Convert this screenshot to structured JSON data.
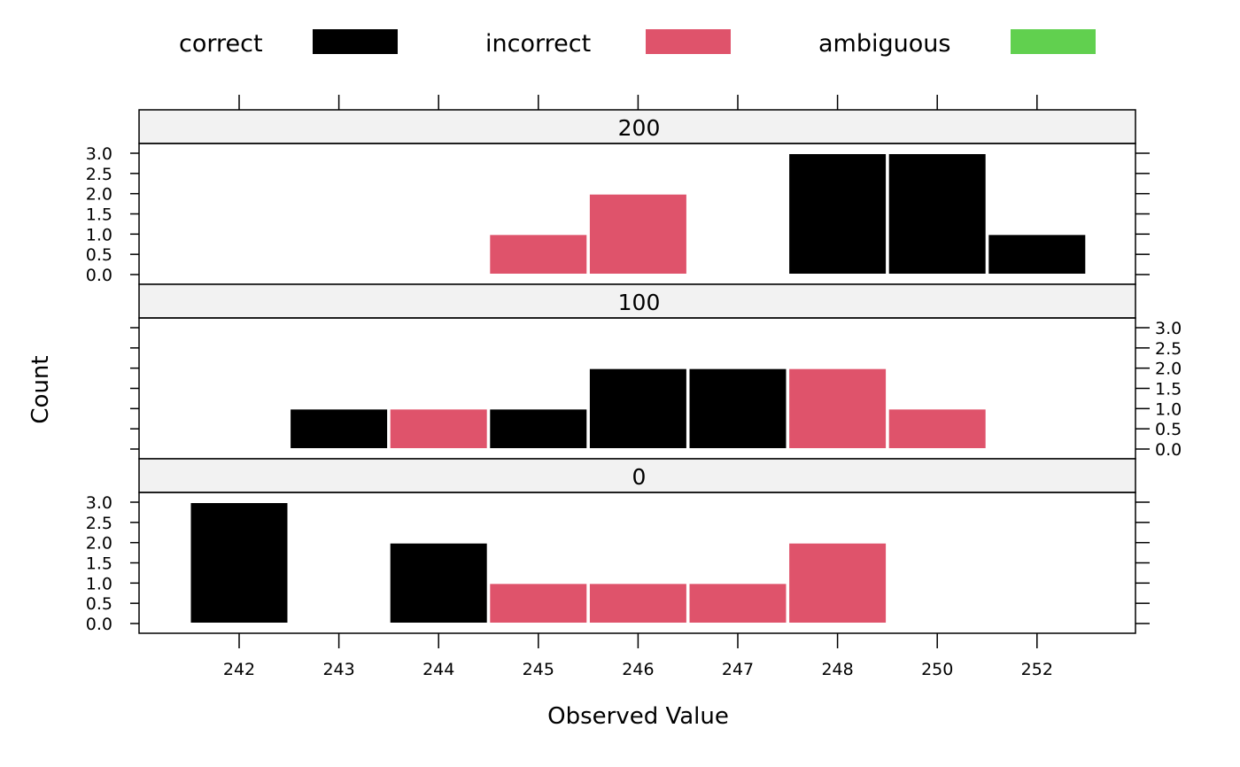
{
  "chart_data": {
    "type": "bar",
    "xlabel": "Observed Value",
    "ylabel": "Count",
    "categories": [
      "242",
      "243",
      "244",
      "245",
      "246",
      "247",
      "248",
      "250",
      "252"
    ],
    "ylim": [
      0,
      3
    ],
    "yticks": [
      "0.0",
      "0.5",
      "1.0",
      "1.5",
      "2.0",
      "2.5",
      "3.0"
    ],
    "legend": [
      {
        "name": "correct",
        "color": "#000000"
      },
      {
        "name": "incorrect",
        "color": "#DF536B"
      },
      {
        "name": "ambiguous",
        "color": "#61D04F"
      }
    ],
    "panels": [
      {
        "label": "200",
        "bars": [
          {
            "category": "245",
            "value": 1,
            "status": "incorrect"
          },
          {
            "category": "246",
            "value": 2,
            "status": "incorrect"
          },
          {
            "category": "248",
            "value": 3,
            "status": "correct"
          },
          {
            "category": "250",
            "value": 3,
            "status": "correct"
          },
          {
            "category": "252",
            "value": 1,
            "status": "correct"
          }
        ]
      },
      {
        "label": "100",
        "bars": [
          {
            "category": "243",
            "value": 1,
            "status": "correct"
          },
          {
            "category": "244",
            "value": 1,
            "status": "incorrect"
          },
          {
            "category": "245",
            "value": 1,
            "status": "correct"
          },
          {
            "category": "246",
            "value": 2,
            "status": "correct"
          },
          {
            "category": "247",
            "value": 2,
            "status": "correct"
          },
          {
            "category": "248",
            "value": 2,
            "status": "incorrect"
          },
          {
            "category": "250",
            "value": 1,
            "status": "incorrect"
          }
        ]
      },
      {
        "label": "0",
        "bars": [
          {
            "category": "242",
            "value": 3,
            "status": "correct"
          },
          {
            "category": "244",
            "value": 2,
            "status": "correct"
          },
          {
            "category": "245",
            "value": 1,
            "status": "incorrect"
          },
          {
            "category": "246",
            "value": 1,
            "status": "incorrect"
          },
          {
            "category": "247",
            "value": 1,
            "status": "incorrect"
          },
          {
            "category": "248",
            "value": 2,
            "status": "incorrect"
          }
        ]
      }
    ]
  }
}
